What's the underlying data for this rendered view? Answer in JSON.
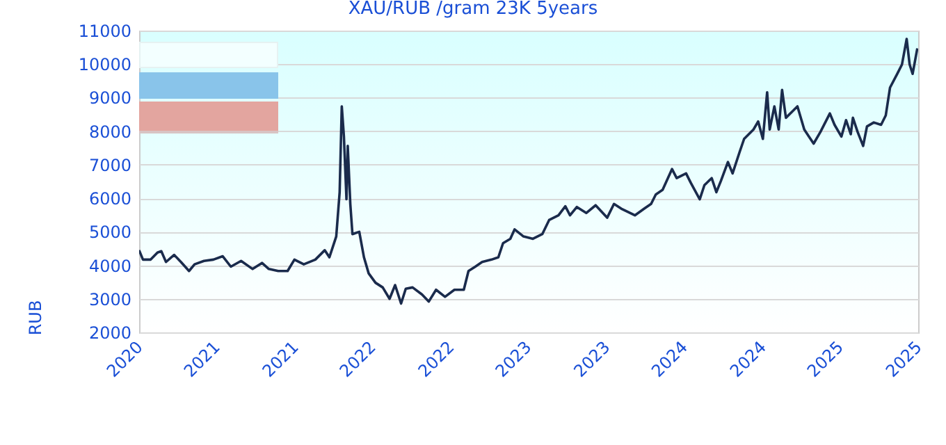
{
  "chart_data": {
    "type": "line",
    "title": "XAU/RUB /gram 23K 5years",
    "ylabel": "RUB",
    "x": [
      "2020-11-10",
      "2020-11-19",
      "2020-12-07",
      "2020-12-23",
      "2021-01-01",
      "2021-01-12",
      "2021-01-31",
      "2021-02-16",
      "2021-03-07",
      "2021-03-20",
      "2021-04-11",
      "2021-05-03",
      "2021-05-25",
      "2021-06-13",
      "2021-07-07",
      "2021-08-03",
      "2021-08-25",
      "2021-09-10",
      "2021-10-02",
      "2021-10-24",
      "2021-11-09",
      "2021-12-01",
      "2021-12-28",
      "2022-01-19",
      "2022-01-30",
      "2022-02-15",
      "2022-02-23",
      "2022-02-28",
      "2022-03-05",
      "2022-03-11",
      "2022-03-14",
      "2022-03-20",
      "2022-03-25",
      "2022-04-10",
      "2022-04-21",
      "2022-05-02",
      "2022-05-18",
      "2022-06-04",
      "2022-06-20",
      "2022-07-03",
      "2022-07-17",
      "2022-07-28",
      "2022-08-13",
      "2022-09-04",
      "2022-09-20",
      "2022-10-07",
      "2022-10-28",
      "2022-11-19",
      "2022-12-11",
      "2022-12-22",
      "2023-01-07",
      "2023-01-23",
      "2023-02-14",
      "2023-03-02",
      "2023-03-13",
      "2023-03-30",
      "2023-04-09",
      "2023-04-30",
      "2023-05-22",
      "2023-06-13",
      "2023-06-29",
      "2023-07-21",
      "2023-08-06",
      "2023-08-17",
      "2023-09-02",
      "2023-09-24",
      "2023-10-16",
      "2023-11-12",
      "2023-11-28",
      "2023-12-15",
      "2024-01-16",
      "2024-02-07",
      "2024-02-23",
      "2024-03-05",
      "2024-03-21",
      "2024-04-12",
      "2024-04-23",
      "2024-05-15",
      "2024-05-26",
      "2024-06-16",
      "2024-06-27",
      "2024-07-14",
      "2024-07-25",
      "2024-08-05",
      "2024-08-21",
      "2024-09-01",
      "2024-09-17",
      "2024-09-28",
      "2024-10-20",
      "2024-10-31",
      "2024-11-11",
      "2024-11-21",
      "2024-11-27",
      "2024-12-08",
      "2024-12-18",
      "2024-12-26",
      "2025-01-04",
      "2025-01-20",
      "2025-01-31",
      "2025-02-16",
      "2025-02-27",
      "2025-03-10",
      "2025-03-26",
      "2025-04-17",
      "2025-04-28",
      "2025-05-14",
      "2025-05-25",
      "2025-06-05",
      "2025-06-10",
      "2025-06-21",
      "2025-07-04",
      "2025-07-13",
      "2025-07-29",
      "2025-08-15",
      "2025-08-26",
      "2025-09-05",
      "2025-09-22",
      "2025-10-03",
      "2025-10-14",
      "2025-10-21",
      "2025-10-28",
      "2025-11-08"
    ],
    "series": [
      {
        "color": "#1a2b4c",
        "values": [
          4450,
          4170,
          4170,
          4380,
          4420,
          4100,
          4310,
          4100,
          3830,
          4030,
          4130,
          4170,
          4270,
          3960,
          4130,
          3890,
          4070,
          3890,
          3830,
          3830,
          4170,
          4030,
          4170,
          4450,
          4240,
          4860,
          6180,
          8740,
          7840,
          5970,
          7560,
          5830,
          4930,
          5000,
          4240,
          3760,
          3480,
          3340,
          3000,
          3410,
          2860,
          3300,
          3340,
          3130,
          2920,
          3270,
          3060,
          3270,
          3270,
          3830,
          3960,
          4100,
          4170,
          4240,
          4660,
          4790,
          5070,
          4860,
          4790,
          4930,
          5350,
          5490,
          5760,
          5490,
          5740,
          5560,
          5790,
          5420,
          5830,
          5690,
          5490,
          5690,
          5830,
          6110,
          6250,
          6870,
          6600,
          6740,
          6460,
          5970,
          6390,
          6600,
          6180,
          6530,
          7080,
          6740,
          7360,
          7770,
          8050,
          8290,
          7770,
          9160,
          8050,
          8740,
          8050,
          9230,
          8400,
          8600,
          8740,
          8050,
          7840,
          7630,
          7980,
          8530,
          8190,
          7840,
          8330,
          7910,
          8400,
          7980,
          7560,
          8140,
          8260,
          8190,
          8470,
          9300,
          9710,
          9990,
          10750,
          9990,
          9710,
          10470
        ]
      }
    ],
    "xlim": [
      "2020-11-10",
      "2025-11-10"
    ],
    "xticks": [
      {
        "value": "2020-11-10",
        "label": "2020"
      },
      {
        "value": "2021-05-10",
        "label": "2021"
      },
      {
        "value": "2021-11-10",
        "label": "2021"
      },
      {
        "value": "2022-05-10",
        "label": "2022"
      },
      {
        "value": "2022-11-10",
        "label": "2022"
      },
      {
        "value": "2023-05-10",
        "label": "2023"
      },
      {
        "value": "2023-11-10",
        "label": "2023"
      },
      {
        "value": "2024-05-10",
        "label": "2024"
      },
      {
        "value": "2024-11-10",
        "label": "2024"
      },
      {
        "value": "2025-05-10",
        "label": "2025"
      },
      {
        "value": "2025-11-10",
        "label": "2025"
      }
    ],
    "ylim": [
      2000,
      11000
    ],
    "yticks": [
      2000,
      3000,
      4000,
      5000,
      6000,
      7000,
      8000,
      9000,
      10000,
      11000
    ],
    "grid": "y",
    "marker": "none",
    "line_style": "solid"
  }
}
